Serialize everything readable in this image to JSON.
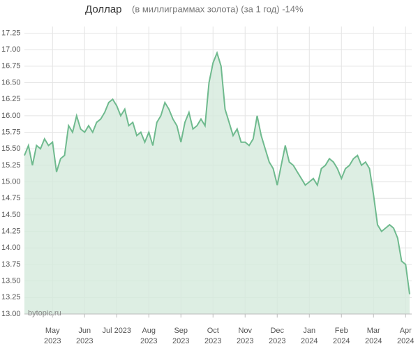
{
  "chart_data": {
    "type": "area",
    "title": "Доллар",
    "subtitle": "(в миллиграммах золота) (за 1 год) -14%",
    "watermark": "bytopic.ru",
    "line_color": "#6fba8e",
    "fill_color": "#d5eadc",
    "grid": true,
    "ylim": [
      13.0,
      17.35
    ],
    "yticks": [
      {
        "value": 13.0,
        "label": "13.00"
      },
      {
        "value": 13.25,
        "label": "13.25"
      },
      {
        "value": 13.5,
        "label": "13.50"
      },
      {
        "value": 13.75,
        "label": "13.75"
      },
      {
        "value": 14.0,
        "label": "14.00"
      },
      {
        "value": 14.25,
        "label": "14.25"
      },
      {
        "value": 14.5,
        "label": "14.50"
      },
      {
        "value": 14.75,
        "label": "14.75"
      },
      {
        "value": 15.0,
        "label": "15.00"
      },
      {
        "value": 15.25,
        "label": "15.25"
      },
      {
        "value": 15.5,
        "label": "15.50"
      },
      {
        "value": 15.75,
        "label": "15.75"
      },
      {
        "value": 16.0,
        "label": "16.00"
      },
      {
        "value": 16.25,
        "label": "16.25"
      },
      {
        "value": 16.5,
        "label": "16.50"
      },
      {
        "value": 16.75,
        "label": "16.75"
      },
      {
        "value": 17.0,
        "label": "17.00"
      },
      {
        "value": 17.25,
        "label": "17.25"
      }
    ],
    "categories": [
      null,
      null,
      null,
      null,
      null,
      null,
      null,
      "May 2023",
      null,
      null,
      null,
      null,
      null,
      null,
      null,
      "Jun 2023",
      null,
      null,
      null,
      null,
      null,
      null,
      null,
      "Jul 2023",
      null,
      null,
      null,
      null,
      null,
      null,
      null,
      "Aug 2023",
      null,
      null,
      null,
      null,
      null,
      null,
      null,
      "Sep 2023",
      null,
      null,
      null,
      null,
      null,
      null,
      null,
      "Oct 2023",
      null,
      null,
      null,
      null,
      null,
      null,
      null,
      "Nov 2023",
      null,
      null,
      null,
      null,
      null,
      null,
      null,
      "Dec 2023",
      null,
      null,
      null,
      null,
      null,
      null,
      null,
      "Jan 2024",
      null,
      null,
      null,
      null,
      null,
      null,
      null,
      "Feb 2024",
      null,
      null,
      null,
      null,
      null,
      null,
      null,
      "Mar 2024",
      null,
      null,
      null,
      null,
      null,
      null,
      null,
      "Apr 2024",
      null
    ],
    "values": [
      15.4,
      15.55,
      15.25,
      15.55,
      15.5,
      15.65,
      15.55,
      15.6,
      15.15,
      15.35,
      15.4,
      15.85,
      15.75,
      16.0,
      15.8,
      15.75,
      15.85,
      15.75,
      15.9,
      15.95,
      16.05,
      16.2,
      16.25,
      16.15,
      16.0,
      16.1,
      15.85,
      15.9,
      15.7,
      15.75,
      15.6,
      15.75,
      15.55,
      15.9,
      16.0,
      16.2,
      16.1,
      15.95,
      15.85,
      15.6,
      15.9,
      16.05,
      15.8,
      15.85,
      15.95,
      15.85,
      16.5,
      16.8,
      16.95,
      16.75,
      16.1,
      15.9,
      15.7,
      15.8,
      15.6,
      15.6,
      15.55,
      15.65,
      16.0,
      15.7,
      15.5,
      15.3,
      15.2,
      14.95,
      15.25,
      15.55,
      15.3,
      15.25,
      15.15,
      15.05,
      14.95,
      15.0,
      15.05,
      14.95,
      15.2,
      15.25,
      15.35,
      15.3,
      15.2,
      15.05,
      15.2,
      15.25,
      15.35,
      15.4,
      15.25,
      15.3,
      15.2,
      14.8,
      14.35,
      14.25,
      14.3,
      14.35,
      14.3,
      14.15,
      13.8,
      13.75,
      13.3
    ]
  }
}
